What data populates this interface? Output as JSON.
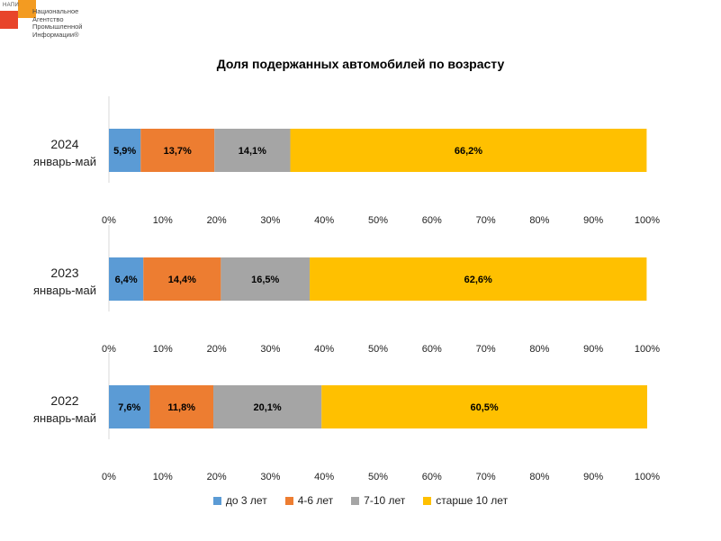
{
  "logo": {
    "small_text": "НАПИ",
    "lines": [
      "Национальное",
      "Агентство",
      "Промышленной",
      "Информации®"
    ]
  },
  "chart_data": {
    "type": "bar",
    "orientation": "horizontal",
    "stacked": "percent",
    "title": "Доля подержанных автомобилей по возрасту",
    "xlim": [
      0,
      100
    ],
    "x_ticks": [
      "0%",
      "10%",
      "20%",
      "30%",
      "40%",
      "50%",
      "60%",
      "70%",
      "80%",
      "90%",
      "100%"
    ],
    "panels": [
      {
        "year": "2024",
        "period": "январь-май",
        "values": [
          5.9,
          13.7,
          14.1,
          66.2
        ],
        "labels": [
          "5,9%",
          "13,7%",
          "14,1%",
          "66,2%"
        ]
      },
      {
        "year": "2023",
        "period": "январь-май",
        "values": [
          6.4,
          14.4,
          16.5,
          62.6
        ],
        "labels": [
          "6,4%",
          "14,4%",
          "16,5%",
          "62,6%"
        ]
      },
      {
        "year": "2022",
        "period": "январь-май",
        "values": [
          7.6,
          11.8,
          20.1,
          60.5
        ],
        "labels": [
          "7,6%",
          "11,8%",
          "20,1%",
          "60,5%"
        ]
      }
    ],
    "series": [
      {
        "name": "до 3 лет",
        "color": "#5b9bd5"
      },
      {
        "name": "4-6 лет",
        "color": "#ed7d31"
      },
      {
        "name": "7-10 лет",
        "color": "#a5a5a5"
      },
      {
        "name": "старше 10 лет",
        "color": "#ffc000"
      }
    ],
    "legend_position": "bottom"
  }
}
